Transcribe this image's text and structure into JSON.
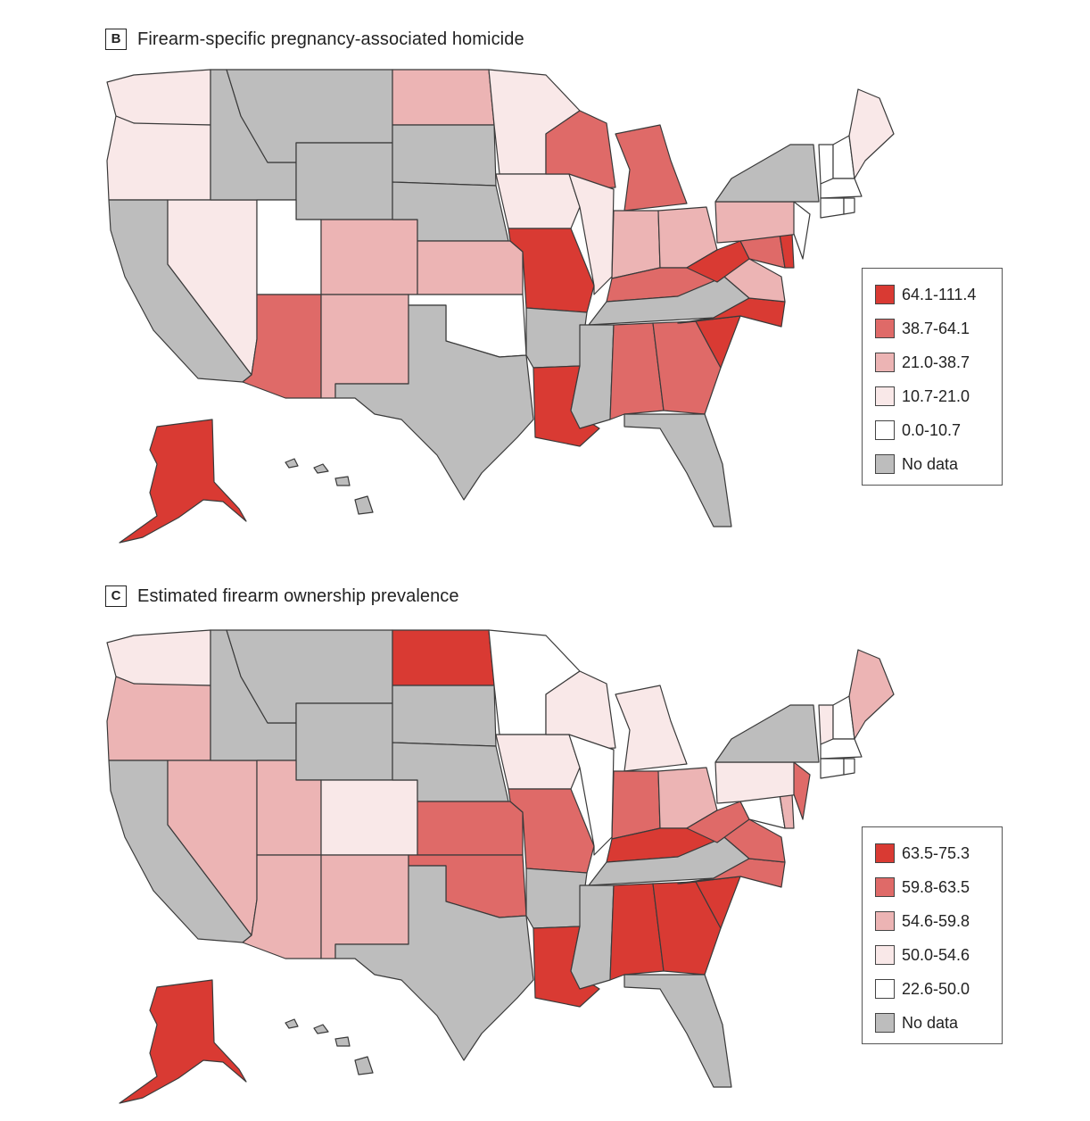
{
  "palette": {
    "cat5": "#d93a33",
    "cat4": "#df6a68",
    "cat3": "#ecb4b4",
    "cat2": "#f9e8e8",
    "cat1": "#ffffff",
    "nodata": "#bdbdbd"
  },
  "panels": [
    {
      "letter": "B",
      "title": "Firearm-specific pregnancy-associated homicide",
      "legend": [
        {
          "label": "64.1-111.4",
          "color": "#d93a33"
        },
        {
          "label": "38.7-64.1",
          "color": "#df6a68"
        },
        {
          "label": "21.0-38.7",
          "color": "#ecb4b4"
        },
        {
          "label": "10.7-21.0",
          "color": "#f9e8e8"
        },
        {
          "label": "0.0-10.7",
          "color": "#ffffff"
        },
        {
          "label": "No data",
          "color": "#bdbdbd"
        }
      ],
      "states": {
        "WA": "cat2",
        "OR": "cat2",
        "CA": "nodata",
        "NV": "cat2",
        "ID": "nodata",
        "MT": "nodata",
        "WY": "nodata",
        "UT": "cat1",
        "AZ": "cat4",
        "CO": "cat3",
        "NM": "cat3",
        "ND": "cat3",
        "SD": "nodata",
        "NE": "nodata",
        "KS": "cat3",
        "OK": "cat1",
        "TX": "nodata",
        "MN": "cat2",
        "IA": "cat2",
        "MO": "cat5",
        "AR": "nodata",
        "LA": "cat5",
        "WI": "cat4",
        "IL": "cat2",
        "MI": "cat4",
        "IN": "cat3",
        "OH": "cat3",
        "KY": "cat4",
        "TN": "nodata",
        "MS": "nodata",
        "AL": "cat4",
        "GA": "cat4",
        "FL": "nodata",
        "SC": "cat5",
        "NC": "cat5",
        "VA": "cat3",
        "WV": "cat5",
        "MD": "cat4",
        "DE": "cat5",
        "PA": "cat3",
        "NJ": "cat1",
        "NY": "nodata",
        "VT": "cat1",
        "NH": "cat1",
        "ME": "cat2",
        "MA": "cat1",
        "CT": "cat1",
        "RI": "cat1",
        "AK": "cat5",
        "HI": "nodata"
      }
    },
    {
      "letter": "C",
      "title": "Estimated firearm ownership prevalence",
      "legend": [
        {
          "label": "63.5-75.3",
          "color": "#d93a33"
        },
        {
          "label": "59.8-63.5",
          "color": "#df6a68"
        },
        {
          "label": "54.6-59.8",
          "color": "#ecb4b4"
        },
        {
          "label": "50.0-54.6",
          "color": "#f9e8e8"
        },
        {
          "label": "22.6-50.0",
          "color": "#ffffff"
        },
        {
          "label": "No data",
          "color": "#bdbdbd"
        }
      ],
      "states": {
        "WA": "cat2",
        "OR": "cat3",
        "CA": "nodata",
        "NV": "cat3",
        "ID": "nodata",
        "MT": "nodata",
        "WY": "nodata",
        "UT": "cat3",
        "AZ": "cat3",
        "CO": "cat2",
        "NM": "cat3",
        "ND": "cat5",
        "SD": "nodata",
        "NE": "nodata",
        "KS": "cat4",
        "OK": "cat4",
        "TX": "nodata",
        "MN": "cat1",
        "IA": "cat2",
        "MO": "cat4",
        "AR": "nodata",
        "LA": "cat5",
        "WI": "cat2",
        "IL": "cat1",
        "MI": "cat2",
        "IN": "cat4",
        "OH": "cat3",
        "KY": "cat5",
        "TN": "nodata",
        "MS": "nodata",
        "AL": "cat5",
        "GA": "cat5",
        "FL": "nodata",
        "SC": "cat5",
        "NC": "cat4",
        "VA": "cat4",
        "WV": "cat4",
        "MD": "cat1",
        "DE": "cat3",
        "PA": "cat2",
        "NJ": "cat4",
        "NY": "nodata",
        "VT": "cat2",
        "NH": "cat1",
        "ME": "cat3",
        "MA": "cat1",
        "CT": "cat1",
        "RI": "cat1",
        "AK": "cat5",
        "HI": "nodata"
      }
    }
  ]
}
